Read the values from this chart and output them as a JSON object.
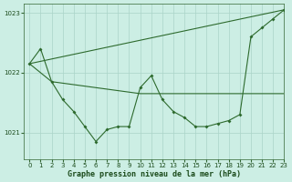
{
  "background_color": "#cceee4",
  "grid_color": "#aad4c8",
  "line_color": "#2d6a2d",
  "xlabel": "Graphe pression niveau de la mer (hPa)",
  "ylim": [
    1020.55,
    1023.15
  ],
  "xlim": [
    -0.5,
    23
  ],
  "yticks": [
    1021,
    1022,
    1023
  ],
  "xticks": [
    0,
    1,
    2,
    3,
    4,
    5,
    6,
    7,
    8,
    9,
    10,
    11,
    12,
    13,
    14,
    15,
    16,
    17,
    18,
    19,
    20,
    21,
    22,
    23
  ],
  "series1_x": [
    0,
    1,
    2,
    3,
    4,
    5,
    6,
    7,
    8,
    9,
    10,
    11,
    12,
    13,
    14,
    15,
    16,
    17,
    18,
    19,
    20,
    21,
    22,
    23
  ],
  "series1_y": [
    1022.15,
    1022.4,
    1021.85,
    1021.55,
    1021.35,
    1021.1,
    1020.85,
    1021.05,
    1021.1,
    1021.1,
    1021.75,
    1021.95,
    1021.55,
    1021.35,
    1021.25,
    1021.1,
    1021.1,
    1021.15,
    1021.2,
    1021.3,
    1022.6,
    1022.75,
    1022.9,
    1023.05
  ],
  "series2_x": [
    0,
    2,
    10,
    19,
    23
  ],
  "series2_y": [
    1022.15,
    1021.85,
    1021.65,
    1021.65,
    1021.65
  ],
  "series3_x": [
    0,
    23
  ],
  "series3_y": [
    1022.15,
    1023.05
  ]
}
